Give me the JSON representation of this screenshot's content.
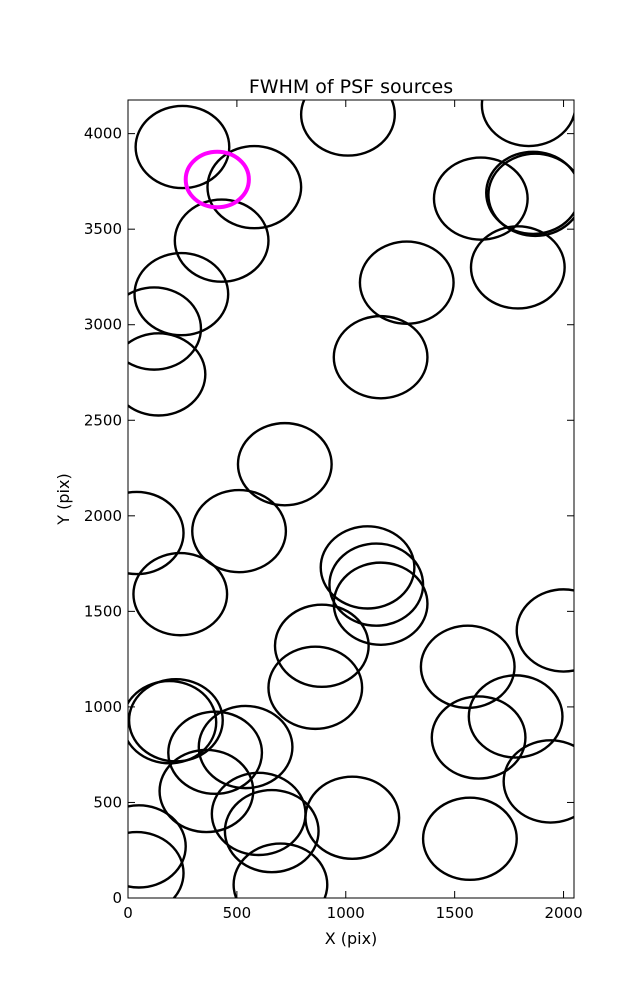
{
  "chart_data": {
    "type": "scatter",
    "title": "FWHM of PSF sources",
    "xlabel": "X (pix)",
    "ylabel": "Y (pix)",
    "xlim": [
      0,
      2048
    ],
    "ylim": [
      0,
      4176
    ],
    "xticks": [
      0,
      500,
      1000,
      1500,
      2000
    ],
    "yticks": [
      0,
      500,
      1000,
      1500,
      2000,
      2500,
      3000,
      3500,
      4000
    ],
    "grid": false,
    "marker": "open-circle",
    "default_color": "#000000",
    "series": [
      {
        "radius": 215,
        "color": "#000000",
        "points": [
          {
            "x": 250,
            "y": 3930
          },
          {
            "x": 580,
            "y": 3720
          },
          {
            "x": 430,
            "y": 3440
          },
          {
            "x": 245,
            "y": 3160
          },
          {
            "x": 120,
            "y": 2980
          },
          {
            "x": 140,
            "y": 2740
          },
          {
            "x": 1010,
            "y": 4100
          },
          {
            "x": 1280,
            "y": 3220
          },
          {
            "x": 1160,
            "y": 2830
          },
          {
            "x": 1840,
            "y": 4150
          },
          {
            "x": 1620,
            "y": 3660
          },
          {
            "x": 1860,
            "y": 3690
          },
          {
            "x": 1870,
            "y": 3680
          },
          {
            "x": 1790,
            "y": 3300
          },
          {
            "x": 720,
            "y": 2270
          },
          {
            "x": 40,
            "y": 1910
          },
          {
            "x": 510,
            "y": 1920
          },
          {
            "x": 240,
            "y": 1590
          },
          {
            "x": 1100,
            "y": 1730
          },
          {
            "x": 1140,
            "y": 1640
          },
          {
            "x": 1160,
            "y": 1540
          },
          {
            "x": 890,
            "y": 1320
          },
          {
            "x": 860,
            "y": 1100
          },
          {
            "x": 1560,
            "y": 1210
          },
          {
            "x": 2000,
            "y": 1400
          },
          {
            "x": 220,
            "y": 930
          },
          {
            "x": 190,
            "y": 920
          },
          {
            "x": 540,
            "y": 790
          },
          {
            "x": 400,
            "y": 760
          },
          {
            "x": 360,
            "y": 560
          },
          {
            "x": 600,
            "y": 440
          },
          {
            "x": 660,
            "y": 350
          },
          {
            "x": 1030,
            "y": 420
          },
          {
            "x": 1780,
            "y": 950
          },
          {
            "x": 1610,
            "y": 840
          },
          {
            "x": 1940,
            "y": 610
          },
          {
            "x": 1570,
            "y": 310
          },
          {
            "x": 50,
            "y": 270
          },
          {
            "x": 40,
            "y": 130
          },
          {
            "x": 700,
            "y": 70
          }
        ]
      },
      {
        "radius": 145,
        "color": "#ff00ff",
        "points": [
          {
            "x": 410,
            "y": 3760
          }
        ]
      }
    ]
  }
}
